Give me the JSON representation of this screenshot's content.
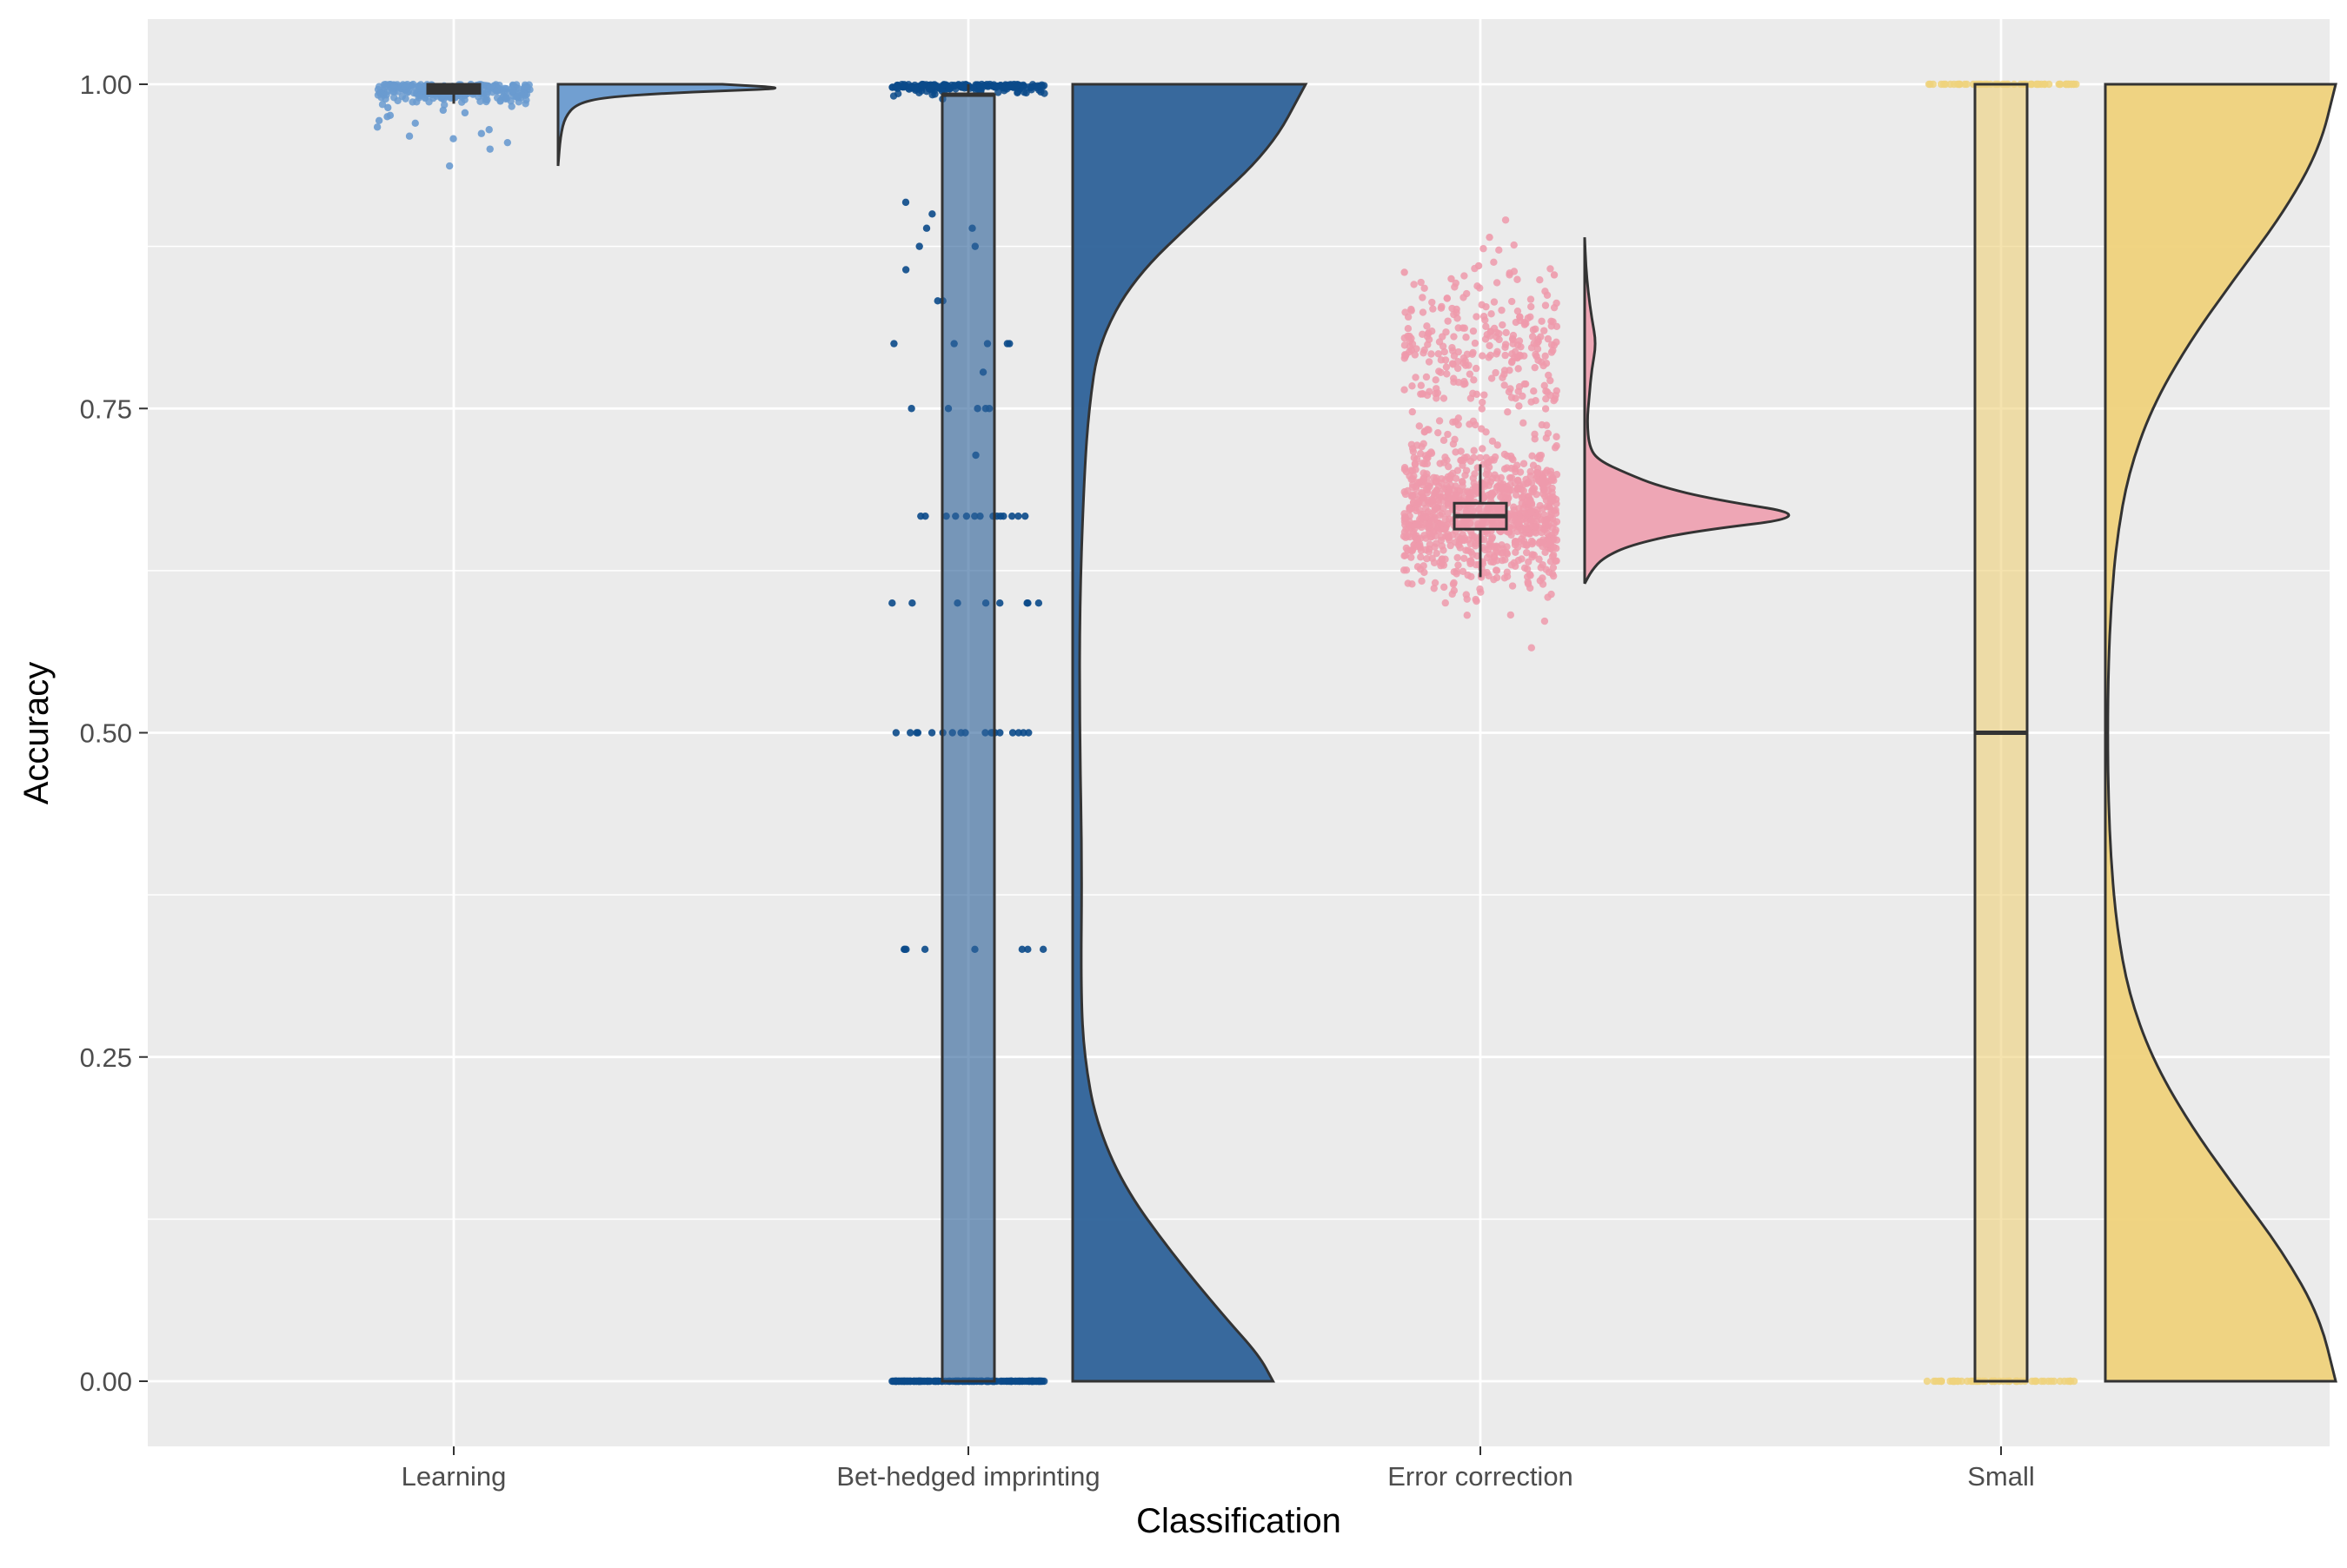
{
  "chart_data": {
    "type": "raincloud",
    "title": "",
    "xlabel": "Classification",
    "ylabel": "Accuracy",
    "ylim": [
      -0.05,
      1.05
    ],
    "yticks": [
      0.0,
      0.25,
      0.5,
      0.75,
      1.0
    ],
    "ytick_labels": [
      "0.00",
      "0.25",
      "0.50",
      "0.75",
      "1.00"
    ],
    "grid": true,
    "legend": "none",
    "categories": [
      "Learning",
      "Bet-hedged imprinting",
      "Error correction",
      "Small"
    ],
    "colors": {
      "panel": "#EBEBEB",
      "gridline": "#FFFFFF",
      "outline": "#333333",
      "Learning": "#6A9BD0",
      "Bet-hedged imprinting": "#2E6299",
      "Bet-hedged imprinting_points": "#0B4A8A",
      "Error correction": "#EE9AAB",
      "Small": "#EFD27C"
    },
    "series": [
      {
        "category": "Learning",
        "box": {
          "min": 0.985,
          "q1": 0.993,
          "median": 0.998,
          "q3": 1.0,
          "max": 1.0
        },
        "points": {
          "clusters": [
            {
              "center": 0.995,
              "spread": 0.005,
              "count": 260
            }
          ],
          "extra": [
            0.937,
            0.96,
            0.965,
            0.967,
            0.972,
            0.975,
            0.976,
            0.978,
            0.98,
            0.95,
            0.955,
            0.958,
            0.962,
            0.97,
            0.982
          ]
        },
        "density": {
          "y": [
            0.937,
            0.96,
            0.975,
            0.985,
            0.99,
            0.993,
            0.995,
            0.997,
            1.0
          ],
          "d": [
            0.0,
            0.01,
            0.03,
            0.08,
            0.2,
            0.45,
            0.7,
            1.0,
            0.7
          ]
        }
      },
      {
        "category": "Bet-hedged imprinting",
        "box": {
          "min": 0.0,
          "q1": 0.0,
          "median": 0.992,
          "q3": 0.992,
          "max": 1.0
        },
        "points": {
          "clusters": [
            {
              "center": 0.0,
              "spread": 0.0,
              "count": 180
            },
            {
              "center": 1.0,
              "spread": 0.004,
              "count": 200
            }
          ],
          "extra": [
            0.333,
            0.333,
            0.333,
            0.333,
            0.333,
            0.333,
            0.333,
            0.333,
            0.5,
            0.5,
            0.5,
            0.5,
            0.5,
            0.5,
            0.5,
            0.5,
            0.5,
            0.5,
            0.5,
            0.5,
            0.5,
            0.5,
            0.5,
            0.5,
            0.5,
            0.5,
            0.6,
            0.6,
            0.6,
            0.6,
            0.6,
            0.6,
            0.6,
            0.6,
            0.667,
            0.667,
            0.667,
            0.667,
            0.667,
            0.667,
            0.667,
            0.667,
            0.667,
            0.667,
            0.667,
            0.667,
            0.667,
            0.667,
            0.714,
            0.75,
            0.75,
            0.75,
            0.75,
            0.75,
            0.778,
            0.8,
            0.8,
            0.8,
            0.8,
            0.8,
            0.833,
            0.833,
            0.857,
            0.875,
            0.875,
            0.889,
            0.889,
            0.9,
            0.909
          ]
        },
        "density": {
          "y": [
            0.0,
            0.02,
            0.05,
            0.1,
            0.15,
            0.2,
            0.25,
            0.3,
            0.4,
            0.5,
            0.6,
            0.7,
            0.75,
            0.8,
            0.85,
            0.9,
            0.95,
            1.0
          ],
          "d": [
            0.86,
            0.8,
            0.65,
            0.42,
            0.22,
            0.1,
            0.05,
            0.035,
            0.04,
            0.03,
            0.03,
            0.05,
            0.07,
            0.11,
            0.26,
            0.55,
            0.85,
            1.0
          ]
        }
      },
      {
        "category": "Error correction",
        "box": {
          "min": 0.62,
          "q1": 0.657,
          "median": 0.667,
          "q3": 0.677,
          "max": 0.707
        },
        "points": {
          "clusters": [
            {
              "center": 0.667,
              "spread": 0.027,
              "count": 900
            },
            {
              "center": 0.8,
              "spread": 0.028,
              "count": 280
            }
          ],
          "extra": [
            0.882,
            0.86,
            0.855,
            0.85,
            0.853
          ]
        },
        "density": {
          "y": [
            0.615,
            0.625,
            0.635,
            0.645,
            0.655,
            0.667,
            0.68,
            0.69,
            0.7,
            0.71,
            0.72,
            0.74,
            0.76,
            0.78,
            0.8,
            0.82,
            0.84,
            0.86,
            0.882
          ],
          "d": [
            0.0,
            0.03,
            0.08,
            0.2,
            0.45,
            1.0,
            0.55,
            0.32,
            0.18,
            0.06,
            0.02,
            0.01,
            0.02,
            0.03,
            0.05,
            0.03,
            0.015,
            0.005,
            0.0
          ]
        }
      },
      {
        "category": "Small",
        "box": {
          "min": 0.0,
          "q1": 0.0,
          "median": 0.5,
          "q3": 1.0,
          "max": 1.0
        },
        "points": {
          "clusters": [
            {
              "center": 0.0,
              "spread": 0.0,
              "count": 60
            },
            {
              "center": 1.0,
              "spread": 0.0,
              "count": 60
            }
          ],
          "extra": []
        },
        "density": {
          "y": [
            0.0,
            0.05,
            0.1,
            0.15,
            0.2,
            0.25,
            0.3,
            0.35,
            0.4,
            0.45,
            0.5,
            0.55,
            0.6,
            0.65,
            0.7,
            0.75,
            0.8,
            0.85,
            0.9,
            0.95,
            1.0
          ],
          "d": [
            1.0,
            0.93,
            0.77,
            0.56,
            0.36,
            0.2,
            0.1,
            0.05,
            0.025,
            0.013,
            0.01,
            0.013,
            0.025,
            0.05,
            0.1,
            0.2,
            0.36,
            0.56,
            0.77,
            0.93,
            1.0
          ]
        }
      }
    ]
  }
}
